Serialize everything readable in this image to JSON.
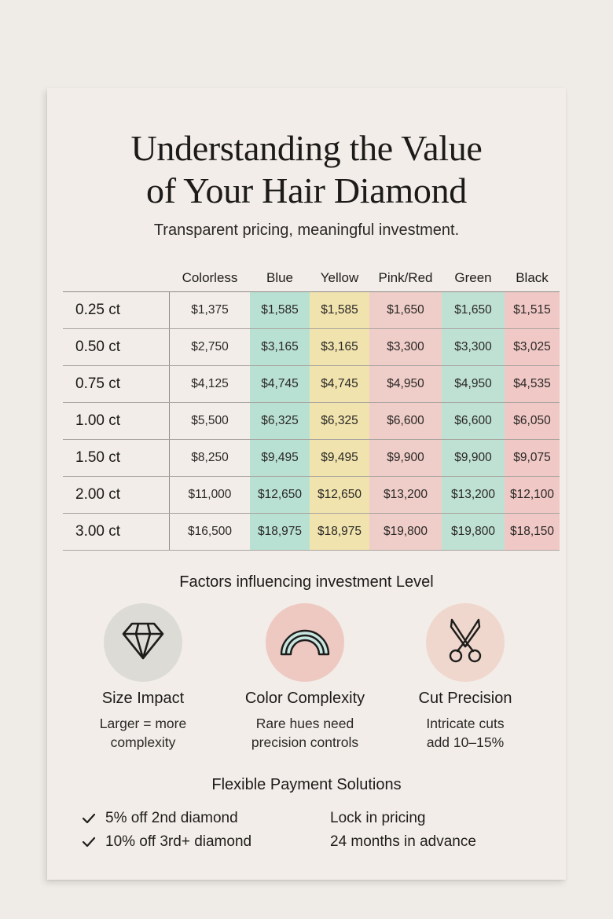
{
  "title_line1": "Understanding the Value",
  "title_line2": "of Your Hair Diamond",
  "subtitle": "Transparent pricing, meaningful investment.",
  "table": {
    "columns": [
      "Colorless",
      "Blue",
      "Yellow",
      "Pink/Red",
      "Green",
      "Black"
    ],
    "column_colors": {
      "Colorless": "#f2ede8",
      "Blue": "#b9e1d3",
      "Yellow": "#f0e3ae",
      "Pink/Red": "#efcdc8",
      "Green": "#bfe1d3",
      "Black": "#f0c8c6"
    },
    "rows": [
      {
        "label": "0.25 ct",
        "values": [
          "$1,375",
          "$1,585",
          "$1,585",
          "$1,650",
          "$1,650",
          "$1,515"
        ]
      },
      {
        "label": "0.50 ct",
        "values": [
          "$2,750",
          "$3,165",
          "$3,165",
          "$3,300",
          "$3,300",
          "$3,025"
        ]
      },
      {
        "label": "0.75 ct",
        "values": [
          "$4,125",
          "$4,745",
          "$4,745",
          "$4,950",
          "$4,950",
          "$4,535"
        ]
      },
      {
        "label": "1.00 ct",
        "values": [
          "$5,500",
          "$6,325",
          "$6,325",
          "$6,600",
          "$6,600",
          "$6,050"
        ]
      },
      {
        "label": "1.50 ct",
        "values": [
          "$8,250",
          "$9,495",
          "$9,495",
          "$9,900",
          "$9,900",
          "$9,075"
        ]
      },
      {
        "label": "2.00 ct",
        "values": [
          "$11,000",
          "$12,650",
          "$12,650",
          "$13,200",
          "$13,200",
          "$12,100"
        ]
      },
      {
        "label": "3.00 ct",
        "values": [
          "$16,500",
          "$18,975",
          "$18,975",
          "$19,800",
          "$19,800",
          "$18,150"
        ]
      }
    ]
  },
  "factors": {
    "title": "Factors influencing investment Level",
    "items": [
      {
        "icon": "diamond-icon",
        "circle_color": "#dcdbd6",
        "name": "Size Impact",
        "desc_line1": "Larger = more",
        "desc_line2": "complexity"
      },
      {
        "icon": "rainbow-icon",
        "circle_color": "#eec9c2",
        "name": "Color Complexity",
        "desc_line1": "Rare hues need",
        "desc_line2": "precision controls"
      },
      {
        "icon": "scissors-icon",
        "circle_color": "#efd7cd",
        "name": "Cut Precision",
        "desc_line1": "Intricate cuts",
        "desc_line2": "add 10–15%"
      }
    ]
  },
  "payment": {
    "title": "Flexible Payment Solutions",
    "discounts": [
      "5% off 2nd diamond",
      "10% off 3rd+ diamond"
    ],
    "lock_line1": "Lock in pricing",
    "lock_line2": "24 months in advance"
  }
}
